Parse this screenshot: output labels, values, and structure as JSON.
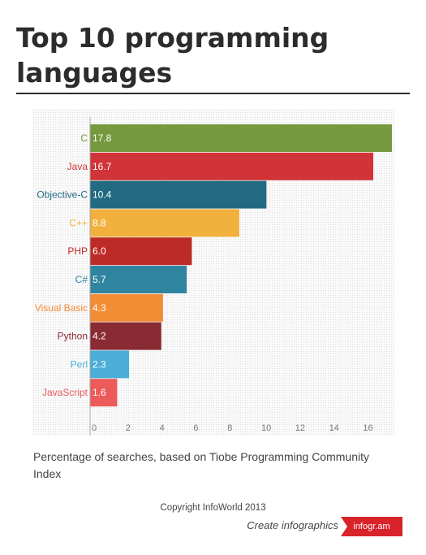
{
  "title": "Top 10 programming languages",
  "subtitle": "Percentage of searches, based on Tiobe Programming Community Index",
  "copyright": "Copyright InfoWorld 2013",
  "create_label": "Create infographics",
  "brand_label": "infogr.am",
  "colors": {
    "brand": "#d8232a"
  },
  "chart_data": {
    "type": "bar",
    "orientation": "horizontal",
    "categories": [
      "C",
      "Java",
      "Objective-C",
      "C++",
      "PHP",
      "C#",
      "Visual Basic",
      "Python",
      "Perl",
      "JavaScript"
    ],
    "values": [
      17.8,
      16.7,
      10.4,
      8.8,
      6.0,
      5.7,
      4.3,
      4.2,
      2.3,
      1.6
    ],
    "value_labels": [
      "17.8",
      "16.7",
      "10.4",
      "8.8",
      "6.0",
      "5.7",
      "4.3",
      "4.2",
      "2.3",
      "1.6"
    ],
    "colors": [
      "#75993e",
      "#d13438",
      "#216a82",
      "#f2b13d",
      "#bd2b27",
      "#2f84a0",
      "#f28c35",
      "#8a2a33",
      "#4aaed6",
      "#ec5a5a"
    ],
    "xticks": [
      "0",
      "2",
      "4",
      "6",
      "8",
      "10",
      "12",
      "14",
      "16"
    ],
    "xlim": [
      0,
      18
    ],
    "grid": false,
    "legend": "none"
  }
}
